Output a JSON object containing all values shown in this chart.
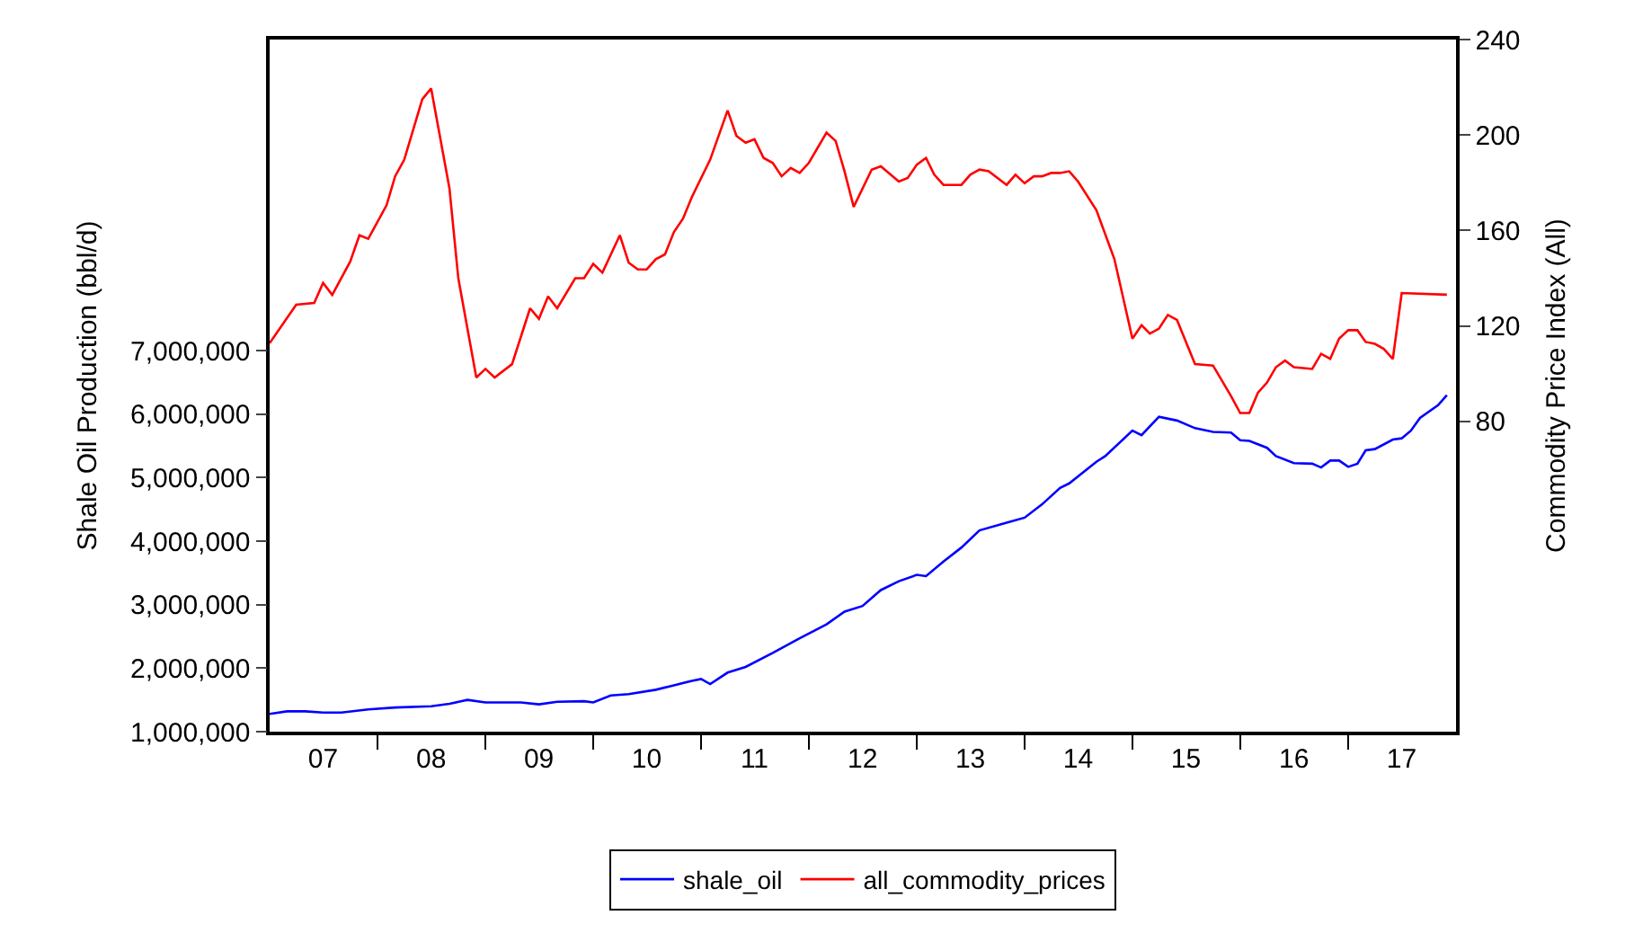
{
  "chart_data": {
    "type": "line",
    "ylabel": "Shale Oil Production (bbl/d)",
    "y2label": "Commodity Price Index (All)",
    "xlim": [
      "2007-01-01",
      "2018-01-01"
    ],
    "xticks": [
      {
        "value": "2007-07-01",
        "label": "07"
      },
      {
        "value": "2008-07-01",
        "label": "08"
      },
      {
        "value": "2009-07-01",
        "label": "09"
      },
      {
        "value": "2010-07-01",
        "label": "10"
      },
      {
        "value": "2011-07-01",
        "label": "11"
      },
      {
        "value": "2012-07-01",
        "label": "12"
      },
      {
        "value": "2013-07-01",
        "label": "13"
      },
      {
        "value": "2014-07-01",
        "label": "14"
      },
      {
        "value": "2015-07-01",
        "label": "15"
      },
      {
        "value": "2016-07-01",
        "label": "16"
      },
      {
        "value": "2017-07-01",
        "label": "17"
      },
      {
        "value": "2008-01-01",
        "label": null
      },
      {
        "value": "2009-01-01",
        "label": null
      },
      {
        "value": "2010-01-01",
        "label": null
      },
      {
        "value": "2011-01-01",
        "label": null
      },
      {
        "value": "2012-01-01",
        "label": null
      },
      {
        "value": "2013-01-01",
        "label": null
      },
      {
        "value": "2014-01-01",
        "label": null
      },
      {
        "value": "2015-01-01",
        "label": null
      },
      {
        "value": "2016-01-01",
        "label": null
      },
      {
        "value": "2017-01-01",
        "label": null
      }
    ],
    "ylim": [
      1000000,
      11900000
    ],
    "yticks": [
      {
        "value": 1000000,
        "label": "1,000,000"
      },
      {
        "value": 2000000,
        "label": "2,000,000"
      },
      {
        "value": 3000000,
        "label": "3,000,000"
      },
      {
        "value": 4000000,
        "label": "4,000,000"
      },
      {
        "value": 5000000,
        "label": "5,000,000"
      },
      {
        "value": 6000000,
        "label": "6,000,000"
      },
      {
        "value": 7000000,
        "label": "7,000,000"
      }
    ],
    "y2lim": [
      -50,
      240
    ],
    "y2ticks": [
      80,
      120,
      160,
      200,
      240
    ],
    "legend": "bottom",
    "line_style": "solid",
    "series": [
      {
        "name": "shale_oil",
        "color": "#0000ff",
        "x": [
          "2007-01",
          "2007-03",
          "2007-05",
          "2007-07",
          "2007-09",
          "2007-12",
          "2008-03",
          "2008-07",
          "2008-09",
          "2008-11",
          "2009-01",
          "2009-05",
          "2009-07",
          "2009-09",
          "2009-12",
          "2010-01",
          "2010-03",
          "2010-05",
          "2010-08",
          "2010-10",
          "2010-12",
          "2011-01",
          "2011-02",
          "2011-04",
          "2011-06",
          "2011-09",
          "2011-12",
          "2012-03",
          "2012-05",
          "2012-07",
          "2012-09",
          "2012-11",
          "2013-01",
          "2013-02",
          "2013-04",
          "2013-06",
          "2013-08",
          "2013-11",
          "2014-01",
          "2014-03",
          "2014-05",
          "2014-06",
          "2014-09",
          "2014-10",
          "2015-01",
          "2015-02",
          "2015-04",
          "2015-06",
          "2015-08",
          "2015-10",
          "2015-12",
          "2016-01",
          "2016-02",
          "2016-04",
          "2016-05",
          "2016-07",
          "2016-09",
          "2016-10",
          "2016-11",
          "2016-12",
          "2017-01",
          "2017-02",
          "2017-03",
          "2017-04",
          "2017-06",
          "2017-07",
          "2017-08",
          "2017-09",
          "2017-11",
          "2017-12"
        ],
        "values": [
          1280000,
          1320000,
          1320000,
          1300000,
          1300000,
          1350000,
          1380000,
          1400000,
          1440000,
          1500000,
          1460000,
          1460000,
          1430000,
          1470000,
          1480000,
          1460000,
          1570000,
          1590000,
          1660000,
          1730000,
          1800000,
          1830000,
          1750000,
          1930000,
          2020000,
          2240000,
          2470000,
          2690000,
          2890000,
          2980000,
          3230000,
          3370000,
          3470000,
          3450000,
          3680000,
          3900000,
          4170000,
          4290000,
          4370000,
          4580000,
          4840000,
          4910000,
          5250000,
          5340000,
          5740000,
          5670000,
          5960000,
          5900000,
          5780000,
          5720000,
          5710000,
          5590000,
          5580000,
          5470000,
          5340000,
          5230000,
          5220000,
          5160000,
          5270000,
          5270000,
          5170000,
          5220000,
          5430000,
          5450000,
          5600000,
          5620000,
          5740000,
          5940000,
          6140000,
          6300000
        ]
      },
      {
        "name": "all_commodity_prices",
        "color": "#ff0000",
        "axis": "y2",
        "x": [
          "2007-01",
          "2007-04",
          "2007-06",
          "2007-07",
          "2007-08",
          "2007-10",
          "2007-11",
          "2007-12",
          "2008-02",
          "2008-03",
          "2008-04",
          "2008-06",
          "2008-07",
          "2008-09",
          "2008-10",
          "2008-12",
          "2009-01",
          "2009-02",
          "2009-04",
          "2009-06",
          "2009-07",
          "2009-08",
          "2009-09",
          "2009-11",
          "2009-12",
          "2010-01",
          "2010-02",
          "2010-04",
          "2010-05",
          "2010-06",
          "2010-07",
          "2010-08",
          "2010-09",
          "2010-10",
          "2010-11",
          "2010-12",
          "2011-02",
          "2011-04",
          "2011-05",
          "2011-06",
          "2011-07",
          "2011-08",
          "2011-09",
          "2011-10",
          "2011-11",
          "2011-12",
          "2012-01",
          "2012-03",
          "2012-04",
          "2012-05",
          "2012-06",
          "2012-08",
          "2012-09",
          "2012-11",
          "2012-12",
          "2013-01",
          "2013-02",
          "2013-03",
          "2013-04",
          "2013-06",
          "2013-07",
          "2013-08",
          "2013-09",
          "2013-11",
          "2013-12",
          "2014-01",
          "2014-02",
          "2014-03",
          "2014-04",
          "2014-05",
          "2014-06",
          "2014-07",
          "2014-09",
          "2014-11",
          "2015-01",
          "2015-02",
          "2015-03",
          "2015-04",
          "2015-05",
          "2015-06",
          "2015-08",
          "2015-10",
          "2015-12",
          "2016-01",
          "2016-02",
          "2016-03",
          "2016-04",
          "2016-05",
          "2016-06",
          "2016-07",
          "2016-09",
          "2016-10",
          "2016-11",
          "2016-12",
          "2017-01",
          "2017-02",
          "2017-03",
          "2017-04",
          "2017-05",
          "2017-06",
          "2017-07",
          "2017-12"
        ],
        "values": [
          112.8,
          128.9,
          129.6,
          138,
          133,
          147,
          158,
          156.5,
          170.6,
          182.7,
          189.7,
          215,
          219.5,
          177.7,
          140,
          98.4,
          102,
          98.4,
          104,
          127.4,
          123,
          132.4,
          127.4,
          140,
          140,
          146,
          142.3,
          158,
          146.5,
          143.7,
          143.7,
          148,
          150,
          159.3,
          165,
          174,
          189.7,
          210.3,
          199.6,
          196.8,
          198.2,
          190.4,
          188.3,
          182.7,
          186.2,
          184.1,
          188.3,
          201,
          197.5,
          184.8,
          169.9,
          185.5,
          186.9,
          180.5,
          182,
          187.6,
          190.4,
          183.4,
          179.1,
          179.1,
          183.4,
          185.5,
          184.8,
          179.1,
          183.4,
          179.8,
          182.7,
          182.7,
          184.1,
          184.1,
          184.8,
          180.5,
          168.5,
          148,
          114.7,
          120.3,
          116.8,
          118.9,
          124.6,
          122.5,
          104,
          103.4,
          90.6,
          83.5,
          83.5,
          92,
          96.3,
          102.7,
          105.5,
          102.7,
          102,
          108.3,
          106.2,
          114.7,
          118.2,
          118.2,
          113.3,
          112.5,
          110.4,
          106.2,
          133.8,
          133.1
        ]
      }
    ]
  }
}
